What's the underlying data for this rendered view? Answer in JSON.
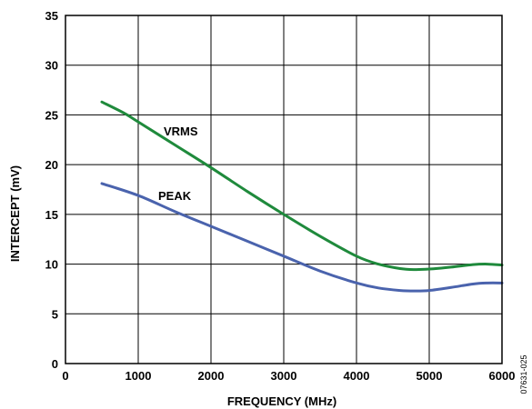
{
  "chart_data": {
    "type": "line",
    "title": "",
    "xlabel": "FREQUENCY (MHz)",
    "ylabel": "INTERCEPT (mV)",
    "xlim": [
      0,
      6000
    ],
    "ylim": [
      0,
      35
    ],
    "x_ticks": [
      0,
      1000,
      2000,
      3000,
      4000,
      5000,
      6000
    ],
    "y_ticks": [
      0,
      5,
      10,
      15,
      20,
      25,
      30,
      35
    ],
    "grid": true,
    "figure_id": "07631-025",
    "series": [
      {
        "name": "VRMS",
        "color": "#1f8a3c",
        "x": [
          500,
          800,
          1000,
          1500,
          2000,
          2500,
          3000,
          3500,
          4000,
          4300,
          4600,
          4800,
          5000,
          5300,
          5600,
          5800,
          6000
        ],
        "y": [
          26.3,
          25.2,
          24.3,
          22.0,
          19.7,
          17.3,
          15.0,
          12.8,
          10.8,
          10.0,
          9.55,
          9.45,
          9.5,
          9.7,
          9.95,
          10.0,
          9.9
        ]
      },
      {
        "name": "PEAK",
        "color": "#4a63ad",
        "x": [
          500,
          1000,
          1500,
          2000,
          2500,
          3000,
          3500,
          4000,
          4300,
          4600,
          4800,
          5000,
          5300,
          5600,
          5800,
          6000
        ],
        "y": [
          18.1,
          16.9,
          15.3,
          13.8,
          12.3,
          10.8,
          9.3,
          8.1,
          7.6,
          7.35,
          7.3,
          7.35,
          7.65,
          8.0,
          8.1,
          8.1
        ]
      }
    ]
  }
}
